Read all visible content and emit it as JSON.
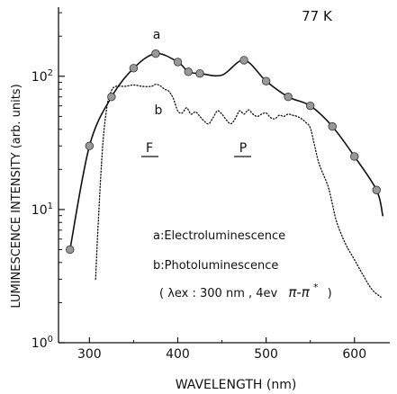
{
  "chart_data": {
    "type": "line",
    "title": "77 K",
    "xlabel": "WAVELENGTH (nm)",
    "ylabel": "LUMINESCENCE INTENSITY (arb. units)",
    "x_ticks": [
      "300",
      "400",
      "500",
      "600"
    ],
    "y_ticks": [
      {
        "base": "10",
        "exp": "0",
        "value": 1
      },
      {
        "base": "10",
        "exp": "1",
        "value": 10
      },
      {
        "base": "10",
        "exp": "2",
        "value": 100
      }
    ],
    "xlim": [
      265,
      640
    ],
    "ylim": [
      1,
      330
    ],
    "y_scale": "log",
    "grid": false,
    "legend": {
      "a": "a:Electroluminescence",
      "b": "b:Photoluminescence",
      "excitation_prefix": "( λex : 300 nm , 4ev",
      "excitation_transition": "π-π",
      "excitation_star": "*",
      "excitation_suffix": ")"
    },
    "annotations": {
      "curve_a": "a",
      "curve_b": "b",
      "band_F": "F",
      "band_P": "P"
    },
    "series": [
      {
        "name": "a",
        "style": "solid-with-circles",
        "x": [
          278,
          300,
          325,
          350,
          375,
          400,
          412,
          425,
          450,
          475,
          500,
          525,
          550,
          575,
          600,
          625,
          632
        ],
        "y": [
          5,
          30,
          70,
          115,
          148,
          128,
          108,
          105,
          102,
          132,
          92,
          70,
          60,
          42,
          25,
          14,
          9
        ],
        "markers": [
          true,
          true,
          true,
          true,
          true,
          true,
          true,
          true,
          false,
          true,
          true,
          true,
          true,
          true,
          true,
          true,
          false
        ]
      },
      {
        "name": "b",
        "style": "dotted",
        "x": [
          307,
          310,
          315,
          320,
          325,
          330,
          340,
          350,
          360,
          370,
          375,
          380,
          385,
          390,
          395,
          400,
          405,
          410,
          415,
          420,
          425,
          430,
          435,
          440,
          445,
          450,
          455,
          460,
          465,
          470,
          475,
          480,
          485,
          490,
          495,
          500,
          505,
          510,
          515,
          520,
          525,
          530,
          535,
          540,
          545,
          550,
          555,
          560,
          570,
          575,
          580,
          590,
          600,
          610,
          620,
          630
        ],
        "y": [
          3,
          8,
          30,
          60,
          78,
          84,
          84,
          86,
          84,
          84,
          87,
          85,
          80,
          77,
          68,
          55,
          53,
          58,
          52,
          54,
          50,
          46,
          44,
          49,
          55,
          52,
          47,
          44,
          48,
          55,
          52,
          56,
          52,
          50,
          52,
          53,
          49,
          48,
          51,
          50,
          52,
          51,
          50,
          48,
          45,
          41,
          30,
          22,
          15,
          11,
          8,
          5.5,
          4.2,
          3.2,
          2.5,
          2.2
        ]
      }
    ],
    "colors": {
      "curve": "#111111",
      "marker_fill": "#999999",
      "marker_stroke": "#333333"
    }
  }
}
